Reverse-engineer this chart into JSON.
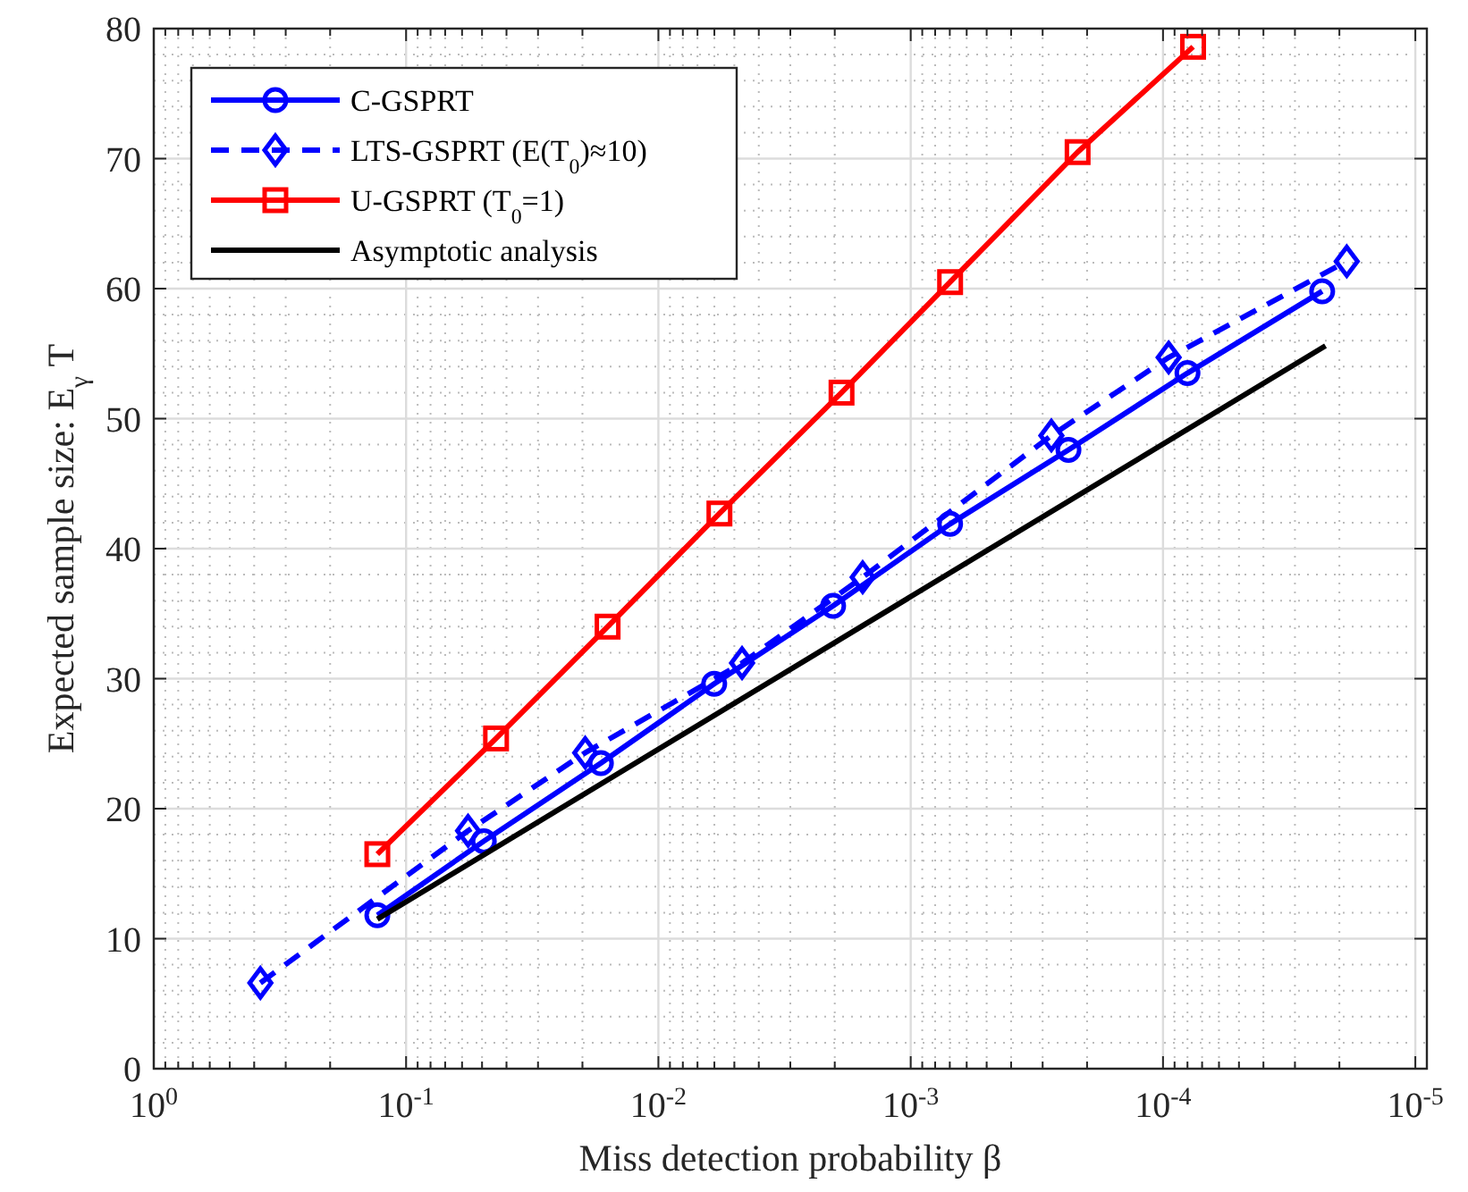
{
  "chart_data": {
    "type": "line",
    "xlabel": "Miss detection probability β",
    "ylabel": "Expected sample size: E$_{γ}$ T",
    "log": "x",
    "grid": true,
    "legend": "top left",
    "xlim": [
      1,
      9e-06
    ],
    "xticks": [
      {
        "value": 1,
        "label": "10$^{0}$"
      },
      {
        "value": 0.1,
        "label": "10$^{-1}$"
      },
      {
        "value": 0.01,
        "label": "10$^{-2}$"
      },
      {
        "value": 0.001,
        "label": "10$^{-3}$"
      },
      {
        "value": 0.0001,
        "label": "10$^{-4}$"
      },
      {
        "value": 1e-05,
        "label": "10$^{-5}$"
      }
    ],
    "ylim": [
      0,
      80
    ],
    "yticks": [
      0,
      10,
      20,
      30,
      40,
      50,
      60,
      70,
      80
    ],
    "series": [
      {
        "name": "C-GSPRT",
        "color": "#0000ff",
        "marker": "circle",
        "line_style": "solid",
        "x": [
          0.13,
          0.0492,
          0.0169,
          0.00601,
          0.00203,
          0.000698,
          0.000237,
          8e-05,
          2.34e-05
        ],
        "values": [
          11.8,
          17.5,
          23.5,
          29.6,
          35.6,
          41.9,
          47.6,
          53.5,
          59.8
        ]
      },
      {
        "name": "LTS-GSPRT (E(T$_{0}$)≈10)",
        "color": "#0000ff",
        "marker": "diamond",
        "line_style": "dashed",
        "x": [
          0.378,
          0.0568,
          0.0195,
          0.00466,
          0.00155,
          0.000277,
          9.5e-05,
          1.87e-05
        ],
        "values": [
          6.6,
          18.3,
          24.3,
          31.2,
          37.8,
          48.7,
          54.7,
          62.1
        ]
      },
      {
        "name": "U-GSPRT (T$_{0}$=1)",
        "color": "#ff0000",
        "marker": "square",
        "line_style": "solid",
        "x": [
          0.13,
          0.044,
          0.0159,
          0.00573,
          0.00188,
          0.000698,
          0.000218,
          7.6e-05
        ],
        "values": [
          16.5,
          25.4,
          34.0,
          42.7,
          52.0,
          60.5,
          70.5,
          78.6
        ]
      },
      {
        "name": "Asymptotic analysis",
        "color": "#000000",
        "marker": "none",
        "line_style": "solid",
        "x": [
          0.13,
          2.27e-05
        ],
        "values": [
          11.5,
          55.6
        ]
      }
    ]
  }
}
